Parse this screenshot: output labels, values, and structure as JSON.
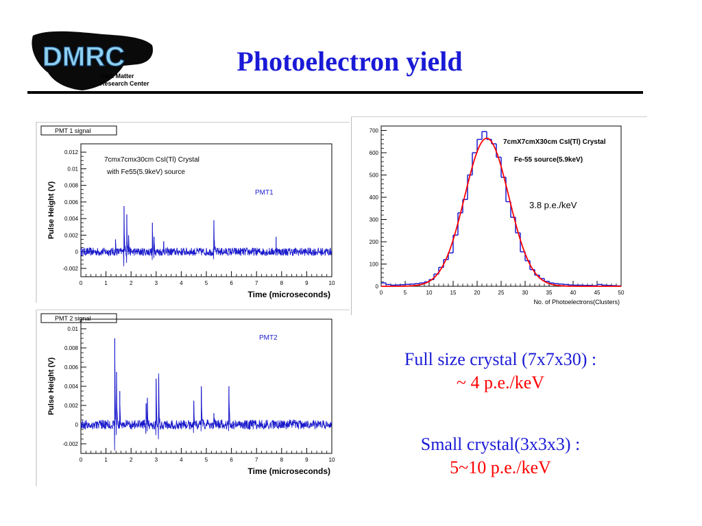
{
  "header": {
    "title": "Photoelectron yield",
    "logo": {
      "text": "DMRC",
      "sub1": "Dark Matter",
      "sub2": "Research Center"
    }
  },
  "colors": {
    "title": "#1a1ad6",
    "trace": "#1a1acc",
    "fit": "#ff0000",
    "caption_blue": "#1a1ad6",
    "caption_red": "#ff0000"
  },
  "chart_data": [
    {
      "type": "line",
      "id": "pmt1",
      "tag": "PMT 1 signal",
      "title": "",
      "xlabel": "Time (microseconds)",
      "ylabel": "Pulse Height (V)",
      "xlim": [
        0,
        10
      ],
      "ylim": [
        -0.003,
        0.013
      ],
      "x_ticks": [
        "0",
        "1",
        "2",
        "3",
        "4",
        "5",
        "6",
        "7",
        "8",
        "9",
        "10"
      ],
      "y_ticks": [
        {
          "v": 0.012,
          "label": "0.012"
        },
        {
          "v": 0.01,
          "label": "0.01"
        },
        {
          "v": 0.008,
          "label": "0.008"
        },
        {
          "v": 0.006,
          "label": "0.006"
        },
        {
          "v": 0.004,
          "label": "0.004"
        },
        {
          "v": 0.002,
          "label": "0.002"
        },
        {
          "v": 0,
          "label": "0"
        },
        {
          "v": -0.002,
          "label": "-0.002"
        }
      ],
      "annotations": [
        "7cmx7cmx30cm CsI(Tl) Crystal",
        "with Fe55(5.9keV) source",
        "PMT1"
      ],
      "baseline": 0,
      "noise": 0.0005,
      "pulses": [
        {
          "t": 1.38,
          "h": 0.0015
        },
        {
          "t": 1.72,
          "h": 0.0055
        },
        {
          "t": 1.83,
          "h": 0.0045
        },
        {
          "t": 1.9,
          "h": 0.002
        },
        {
          "t": 2.85,
          "h": 0.0035
        },
        {
          "t": 2.92,
          "h": 0.0018
        },
        {
          "t": 3.3,
          "h": 0.0012
        },
        {
          "t": 5.3,
          "h": 0.0038
        },
        {
          "t": 7.78,
          "h": 0.0018
        }
      ]
    },
    {
      "type": "line",
      "id": "pmt2",
      "tag": "PMT 2 signal",
      "title": "",
      "xlabel": "Time (microseconds)",
      "ylabel": "Pulse Height (V)",
      "xlim": [
        0,
        10
      ],
      "ylim": [
        -0.003,
        0.011
      ],
      "x_ticks": [
        "0",
        "1",
        "2",
        "3",
        "4",
        "5",
        "6",
        "7",
        "8",
        "9",
        "10"
      ],
      "y_ticks": [
        {
          "v": 0.01,
          "label": "0.01"
        },
        {
          "v": 0.008,
          "label": "0.008"
        },
        {
          "v": 0.006,
          "label": "0.006"
        },
        {
          "v": 0.004,
          "label": "0.004"
        },
        {
          "v": 0.002,
          "label": "0.002"
        },
        {
          "v": 0,
          "label": "0"
        },
        {
          "v": -0.002,
          "label": "-0.002"
        }
      ],
      "annotations": [
        "PMT2"
      ],
      "baseline": 0,
      "noise": 0.0005,
      "pulses": [
        {
          "t": 1.35,
          "h": 0.009
        },
        {
          "t": 1.42,
          "h": 0.0055
        },
        {
          "t": 1.55,
          "h": 0.0035
        },
        {
          "t": 2.6,
          "h": 0.0022
        },
        {
          "t": 2.65,
          "h": 0.0028
        },
        {
          "t": 3.0,
          "h": 0.0048
        },
        {
          "t": 3.1,
          "h": 0.005
        },
        {
          "t": 4.5,
          "h": 0.0025
        },
        {
          "t": 4.8,
          "h": 0.004
        },
        {
          "t": 5.9,
          "h": 0.004
        },
        {
          "t": 5.3,
          "h": 0.0012
        }
      ]
    },
    {
      "type": "bar",
      "id": "histogram",
      "title": "",
      "xlabel": "No. of Photoelectrons(Clusters)",
      "ylabel": "",
      "xlim": [
        0,
        50
      ],
      "ylim": [
        0,
        720
      ],
      "x_ticks": [
        "0",
        "5",
        "10",
        "15",
        "20",
        "25",
        "30",
        "35",
        "40",
        "45",
        "50"
      ],
      "y_ticks": [
        "0",
        "100",
        "200",
        "300",
        "400",
        "500",
        "600",
        "700"
      ],
      "annotations": [
        "7cmX7cmX30cm CsI(Tl) Crystal",
        "Fe-55 source(5.9keV)",
        "3.8 p.e./keV"
      ],
      "bin_width": 1,
      "bin_start": 0,
      "values": [
        15,
        8,
        5,
        6,
        7,
        9,
        10,
        12,
        15,
        20,
        30,
        55,
        85,
        120,
        150,
        230,
        330,
        390,
        500,
        600,
        660,
        695,
        660,
        640,
        580,
        490,
        380,
        310,
        240,
        155,
        115,
        75,
        50,
        35,
        22,
        15,
        12,
        10,
        8,
        6,
        5,
        5,
        4,
        4,
        3,
        8,
        5,
        4,
        3,
        2
      ],
      "fit": {
        "type": "gaussian",
        "amplitude": 665,
        "mean": 22,
        "sigma": 4.6
      }
    }
  ],
  "captions": [
    {
      "line1": "Full size crystal (7x7x30) :",
      "line2": "~ 4 p.e./keV"
    },
    {
      "line1": "Small crystal(3x3x3) :",
      "line2": "5~10 p.e./keV"
    }
  ]
}
